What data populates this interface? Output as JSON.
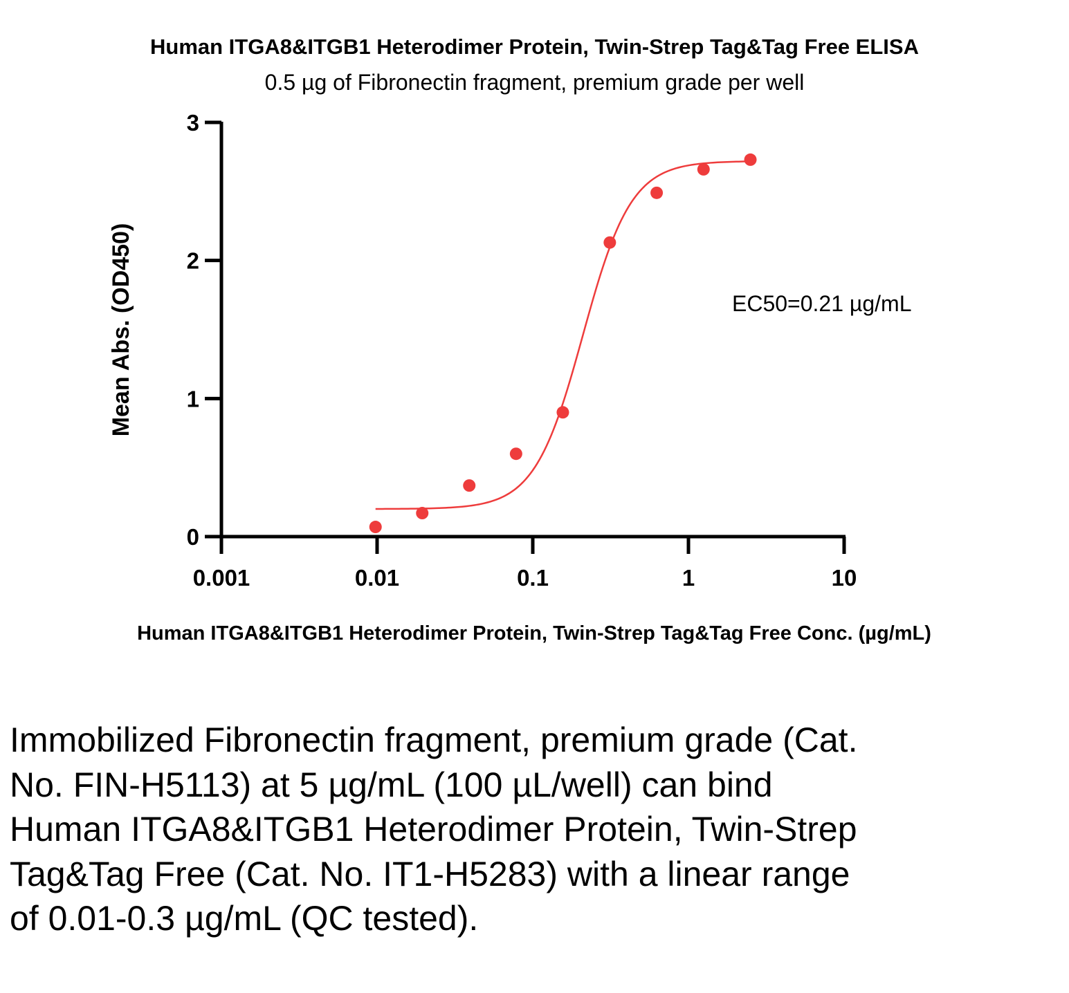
{
  "chart_data": {
    "type": "scatter",
    "title": "Human ITGA8&ITGB1 Heterodimer Protein, Twin-Strep Tag&Tag Free ELISA",
    "subtitle": "0.5 µg of Fibronectin fragment, premium grade per well",
    "xlabel": "Human ITGA8&ITGB1 Heterodimer Protein, Twin-Strep Tag&Tag Free Conc. (µg/mL)",
    "ylabel": "Mean Abs. (OD450)",
    "x_scale": "log",
    "xlim": [
      0.001,
      10
    ],
    "ylim": [
      0,
      3
    ],
    "x_ticks": [
      0.001,
      0.01,
      0.1,
      1,
      10
    ],
    "x_tick_labels": [
      "0.001",
      "0.01",
      "0.1",
      "1",
      "10"
    ],
    "y_ticks": [
      0,
      1,
      2,
      3
    ],
    "y_tick_labels": [
      "0",
      "1",
      "2",
      "3"
    ],
    "grid": false,
    "series": [
      {
        "x": [
          0.00977,
          0.0195,
          0.0391,
          0.0781,
          0.156,
          0.3125,
          0.625,
          1.25,
          2.5
        ],
        "y": [
          0.07,
          0.17,
          0.37,
          0.6,
          0.9,
          2.13,
          2.49,
          2.66,
          2.73
        ],
        "color": "#ee3c3c",
        "fit": {
          "model": "4PL",
          "bottom": 0.2,
          "top": 2.72,
          "ec50": 0.21,
          "hill": 2.8
        }
      }
    ],
    "annotations": [
      "EC50=0.21 µg/mL"
    ]
  },
  "caption": "Immobilized Fibronectin fragment, premium grade (Cat. No. FIN-H5113) at 5 µg/mL (100 µL/well) can bind Human ITGA8&ITGB1 Heterodimer Protein, Twin-Strep Tag&Tag Free (Cat. No. IT1-H5283) with a linear range of 0.01-0.3 µg/mL (QC tested)."
}
